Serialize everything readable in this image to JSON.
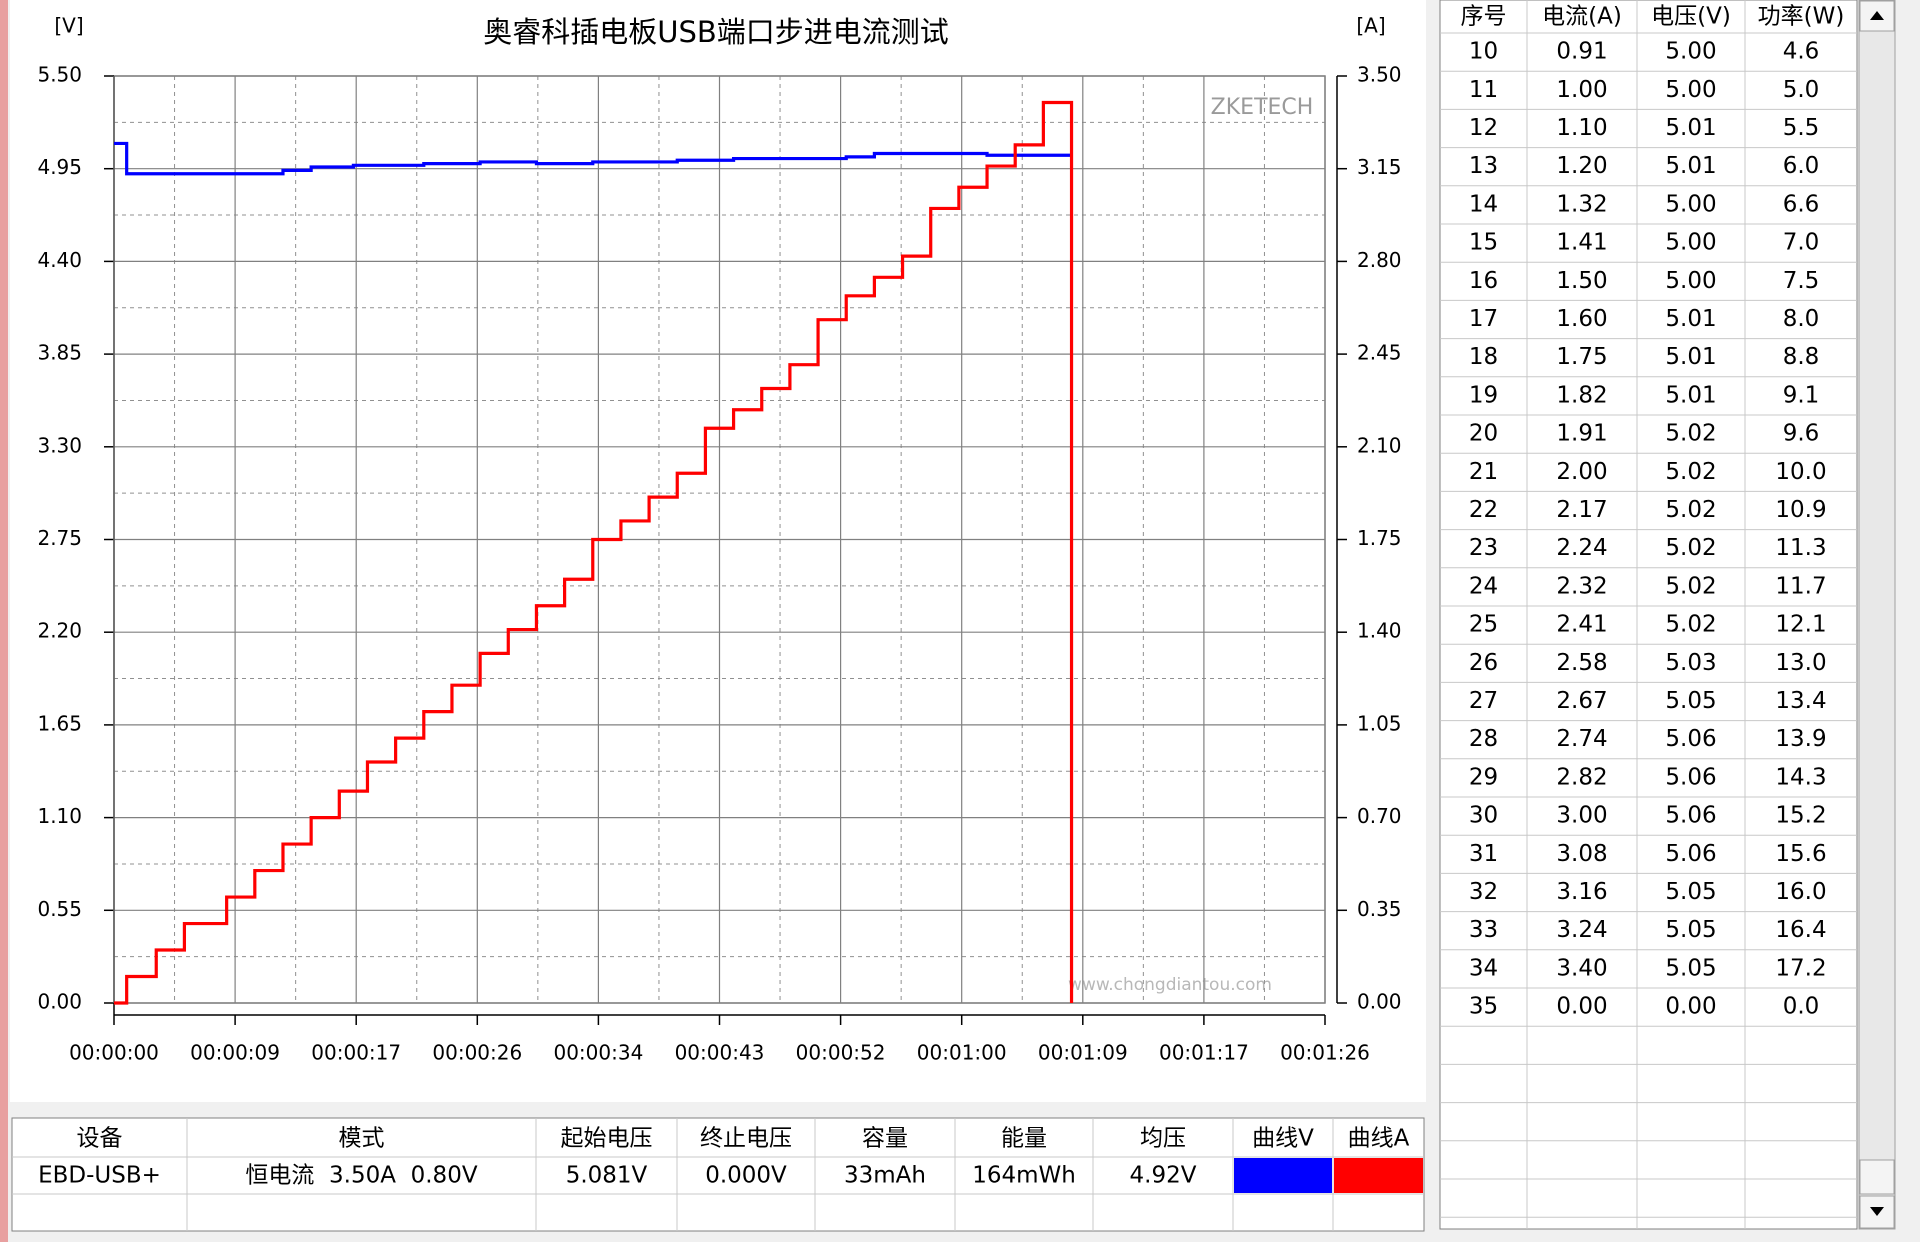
{
  "chart_data": {
    "type": "step-line",
    "title": "奥睿科插电板USB端口步进电流测试",
    "y_unit": "[V]",
    "y2_unit": "[A]",
    "watermark": "ZKETECH",
    "watermark_url": "www.chongdiantou.com",
    "xlim": [
      0,
      86
    ],
    "xticks": [
      {
        "value": 0,
        "label": "00:00:00"
      },
      {
        "value": 8.6,
        "label": "00:00:09"
      },
      {
        "value": 17.2,
        "label": "00:00:17"
      },
      {
        "value": 25.8,
        "label": "00:00:26"
      },
      {
        "value": 34.4,
        "label": "00:00:34"
      },
      {
        "value": 43,
        "label": "00:00:43"
      },
      {
        "value": 51.6,
        "label": "00:00:52"
      },
      {
        "value": 60.2,
        "label": "00:01:00"
      },
      {
        "value": 68.8,
        "label": "00:01:09"
      },
      {
        "value": 77.4,
        "label": "00:01:17"
      },
      {
        "value": 86,
        "label": "00:01:26"
      }
    ],
    "ylim": [
      0,
      5.5
    ],
    "yticks": [
      {
        "value": 0,
        "label": "0.00"
      },
      {
        "value": 0.55,
        "label": "0.55"
      },
      {
        "value": 1.1,
        "label": "1.10"
      },
      {
        "value": 1.65,
        "label": "1.65"
      },
      {
        "value": 2.2,
        "label": "2.20"
      },
      {
        "value": 2.75,
        "label": "2.75"
      },
      {
        "value": 3.3,
        "label": "3.30"
      },
      {
        "value": 3.85,
        "label": "3.85"
      },
      {
        "value": 4.4,
        "label": "4.40"
      },
      {
        "value": 4.95,
        "label": "4.95"
      },
      {
        "value": 5.5,
        "label": "5.50"
      }
    ],
    "y2lim": [
      0,
      3.5
    ],
    "y2ticks": [
      {
        "value": 0,
        "label": "0.00"
      },
      {
        "value": 0.35,
        "label": "0.35"
      },
      {
        "value": 0.7,
        "label": "0.70"
      },
      {
        "value": 1.05,
        "label": "1.05"
      },
      {
        "value": 1.4,
        "label": "1.40"
      },
      {
        "value": 1.75,
        "label": "1.75"
      },
      {
        "value": 2.1,
        "label": "2.10"
      },
      {
        "value": 2.45,
        "label": "2.45"
      },
      {
        "value": 2.8,
        "label": "2.80"
      },
      {
        "value": 3.15,
        "label": "3.15"
      },
      {
        "value": 3.5,
        "label": "3.50"
      }
    ],
    "grid": true,
    "series": [
      {
        "name": "曲线V",
        "color": "#0000ff",
        "x": [
          0,
          0.9,
          10,
          12,
          14,
          17,
          22,
          26,
          30,
          34,
          40,
          44,
          52,
          54,
          60,
          62,
          68
        ],
        "values": [
          5.1,
          4.92,
          4.92,
          4.94,
          4.96,
          4.97,
          4.98,
          4.99,
          4.98,
          4.99,
          5.0,
          5.01,
          5.02,
          5.04,
          5.04,
          5.03,
          5.03
        ]
      },
      {
        "name": "曲线A",
        "color": "#ff0000",
        "axis": "y2",
        "x": [
          0,
          0.9,
          3,
          5,
          8,
          10,
          12,
          14,
          16,
          18,
          20,
          22,
          24,
          26,
          28,
          30,
          32,
          34,
          36,
          38,
          40,
          42,
          44,
          46,
          48,
          50,
          52,
          54,
          56,
          58,
          60,
          62,
          64,
          66,
          68
        ],
        "values": [
          0,
          0.1,
          0.2,
          0.3,
          0.4,
          0.5,
          0.6,
          0.7,
          0.8,
          0.91,
          1.0,
          1.1,
          1.2,
          1.32,
          1.41,
          1.5,
          1.6,
          1.75,
          1.82,
          1.91,
          2.0,
          2.17,
          2.24,
          2.32,
          2.41,
          2.58,
          2.67,
          2.74,
          2.82,
          3.0,
          3.08,
          3.16,
          3.24,
          3.4,
          0
        ]
      }
    ]
  },
  "table": {
    "headers": [
      "序号",
      "电流(A)",
      "电压(V)",
      "功率(W)"
    ],
    "rows": [
      [
        "10",
        "0.91",
        "5.00",
        "4.6"
      ],
      [
        "11",
        "1.00",
        "5.00",
        "5.0"
      ],
      [
        "12",
        "1.10",
        "5.01",
        "5.5"
      ],
      [
        "13",
        "1.20",
        "5.01",
        "6.0"
      ],
      [
        "14",
        "1.32",
        "5.00",
        "6.6"
      ],
      [
        "15",
        "1.41",
        "5.00",
        "7.0"
      ],
      [
        "16",
        "1.50",
        "5.00",
        "7.5"
      ],
      [
        "17",
        "1.60",
        "5.01",
        "8.0"
      ],
      [
        "18",
        "1.75",
        "5.01",
        "8.8"
      ],
      [
        "19",
        "1.82",
        "5.01",
        "9.1"
      ],
      [
        "20",
        "1.91",
        "5.02",
        "9.6"
      ],
      [
        "21",
        "2.00",
        "5.02",
        "10.0"
      ],
      [
        "22",
        "2.17",
        "5.02",
        "10.9"
      ],
      [
        "23",
        "2.24",
        "5.02",
        "11.3"
      ],
      [
        "24",
        "2.32",
        "5.02",
        "11.7"
      ],
      [
        "25",
        "2.41",
        "5.02",
        "12.1"
      ],
      [
        "26",
        "2.58",
        "5.03",
        "13.0"
      ],
      [
        "27",
        "2.67",
        "5.05",
        "13.4"
      ],
      [
        "28",
        "2.74",
        "5.06",
        "13.9"
      ],
      [
        "29",
        "2.82",
        "5.06",
        "14.3"
      ],
      [
        "30",
        "3.00",
        "5.06",
        "15.2"
      ],
      [
        "31",
        "3.08",
        "5.06",
        "15.6"
      ],
      [
        "32",
        "3.16",
        "5.05",
        "16.0"
      ],
      [
        "33",
        "3.24",
        "5.05",
        "16.4"
      ],
      [
        "34",
        "3.40",
        "5.05",
        "17.2"
      ],
      [
        "35",
        "0.00",
        "0.00",
        "0.0"
      ]
    ]
  },
  "summary": {
    "headers": [
      "设备",
      "模式",
      "起始电压",
      "终止电压",
      "容量",
      "能量",
      "均压",
      "曲线V",
      "曲线A"
    ],
    "row": [
      "EBD-USB+",
      "恒电流  3.50A  0.80V",
      "5.081V",
      "0.000V",
      "33mAh",
      "164mWh",
      "4.92V"
    ]
  }
}
